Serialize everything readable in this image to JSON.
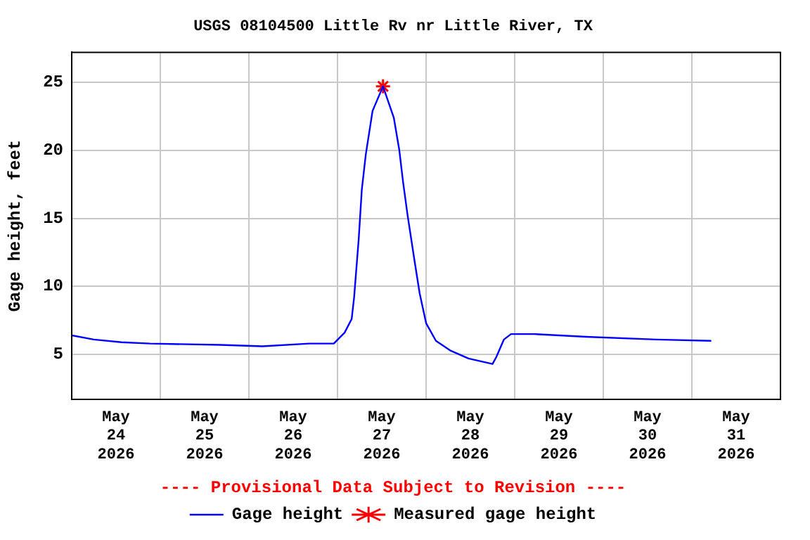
{
  "chart_data": {
    "type": "line",
    "title": "USGS 08104500 Little Rv nr Little River, TX",
    "ylabel": "Gage height, feet",
    "annotations": [
      "---- Provisional Data Subject to Revision ----"
    ],
    "xlim": [
      "2026-05-24T00:00",
      "2026-06-01T00:00"
    ],
    "xticks": [
      {
        "value": "2026-05-24T12:00",
        "label": "May 24 2026"
      },
      {
        "value": "2026-05-25T00:00",
        "label": null
      },
      {
        "value": "2026-05-25T12:00",
        "label": "May 25 2026"
      },
      {
        "value": "2026-05-26T00:00",
        "label": null
      },
      {
        "value": "2026-05-26T12:00",
        "label": "May 26 2026"
      },
      {
        "value": "2026-05-27T00:00",
        "label": null
      },
      {
        "value": "2026-05-27T12:00",
        "label": "May 27 2026"
      },
      {
        "value": "2026-05-28T00:00",
        "label": null
      },
      {
        "value": "2026-05-28T12:00",
        "label": "May 28 2026"
      },
      {
        "value": "2026-05-29T00:00",
        "label": null
      },
      {
        "value": "2026-05-29T12:00",
        "label": "May 29 2026"
      },
      {
        "value": "2026-05-30T00:00",
        "label": null
      },
      {
        "value": "2026-05-30T12:00",
        "label": "May 30 2026"
      },
      {
        "value": "2026-05-31T00:00",
        "label": null
      },
      {
        "value": "2026-05-31T12:00",
        "label": "May 31 2026"
      }
    ],
    "ylim": [
      1.7,
      27.2
    ],
    "yticks": [
      5,
      10,
      15,
      20,
      25
    ],
    "grid": true,
    "legend": "bottom",
    "series": [
      {
        "name": "Gage height",
        "color": "#0000ff",
        "marker": "none",
        "x": [
          "2026-05-24T00:00",
          "2026-05-24T06:00",
          "2026-05-24T13:30",
          "2026-05-24T21:15",
          "2026-05-25T16:15",
          "2026-05-26T03:40",
          "2026-05-26T16:20",
          "2026-05-26T23:00",
          "2026-05-27T01:55",
          "2026-05-27T03:50",
          "2026-05-27T04:30",
          "2026-05-27T05:45",
          "2026-05-27T06:35",
          "2026-05-27T07:40",
          "2026-05-27T09:30",
          "2026-05-27T12:20",
          "2026-05-27T15:15",
          "2026-05-27T16:45",
          "2026-05-27T17:45",
          "2026-05-27T19:00",
          "2026-05-27T20:55",
          "2026-05-27T22:15",
          "2026-05-28T00:00",
          "2026-05-28T02:40",
          "2026-05-28T06:30",
          "2026-05-28T11:30",
          "2026-05-28T18:00",
          "2026-05-28T19:00",
          "2026-05-28T21:05",
          "2026-05-28T23:00",
          "2026-05-29T05:15",
          "2026-05-29T19:20",
          "2026-05-30T14:20",
          "2026-05-31T05:15"
        ],
        "values": [
          6.4,
          6.1,
          5.9,
          5.8,
          5.7,
          5.6,
          5.8,
          5.8,
          6.6,
          7.6,
          9.2,
          13.5,
          17.1,
          19.7,
          22.9,
          24.7,
          22.4,
          20.0,
          17.7,
          15.2,
          11.8,
          9.5,
          7.3,
          6.0,
          5.3,
          4.7,
          4.3,
          4.8,
          6.1,
          6.5,
          6.5,
          6.3,
          6.1,
          6.0
        ]
      },
      {
        "name": "Measured gage height",
        "type": "scatter",
        "color": "#ff0000",
        "marker": "cross",
        "x": [
          "2026-05-27T12:20"
        ],
        "values": [
          24.7
        ]
      }
    ]
  }
}
